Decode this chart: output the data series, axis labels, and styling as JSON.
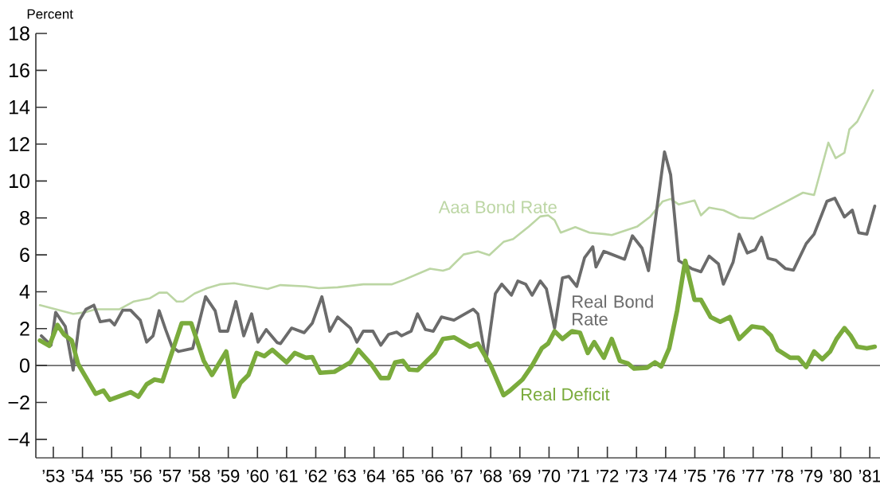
{
  "chart_data": {
    "type": "line",
    "ylabel": "Percent",
    "xlim": [
      1952.4,
      1981.35
    ],
    "ylim": [
      -5,
      18
    ],
    "xticks": [
      {
        "value": 1953,
        "label": "’53"
      },
      {
        "value": 1954,
        "label": "’54"
      },
      {
        "value": 1955,
        "label": "’55"
      },
      {
        "value": 1956,
        "label": "’56"
      },
      {
        "value": 1957,
        "label": "’57"
      },
      {
        "value": 1958,
        "label": "’58"
      },
      {
        "value": 1959,
        "label": "’59"
      },
      {
        "value": 1960,
        "label": "’60"
      },
      {
        "value": 1961,
        "label": "’61"
      },
      {
        "value": 1962,
        "label": "’62"
      },
      {
        "value": 1963,
        "label": "’63"
      },
      {
        "value": 1964,
        "label": "’64"
      },
      {
        "value": 1965,
        "label": "’65"
      },
      {
        "value": 1966,
        "label": "’66"
      },
      {
        "value": 1967,
        "label": "’67"
      },
      {
        "value": 1968,
        "label": "’68"
      },
      {
        "value": 1969,
        "label": "’69"
      },
      {
        "value": 1970,
        "label": "’70"
      },
      {
        "value": 1971,
        "label": "’71"
      },
      {
        "value": 1972,
        "label": "’72"
      },
      {
        "value": 1973,
        "label": "’73"
      },
      {
        "value": 1974,
        "label": "’74"
      },
      {
        "value": 1975,
        "label": "’75"
      },
      {
        "value": 1976,
        "label": "’76"
      },
      {
        "value": 1977,
        "label": "’77"
      },
      {
        "value": 1978,
        "label": "’78"
      },
      {
        "value": 1979,
        "label": "’79"
      },
      {
        "value": 1980,
        "label": "’80"
      },
      {
        "value": 1981,
        "label": "’81"
      }
    ],
    "yticks": [
      {
        "value": -4,
        "label": "−4"
      },
      {
        "value": -2,
        "label": "−2"
      },
      0,
      2,
      4,
      6,
      8,
      10,
      12,
      14,
      16,
      18
    ],
    "grid": false,
    "marker": "none",
    "line_style": "solid",
    "ref_lines": [
      {
        "axis": "y",
        "value": 0,
        "color": "#333333"
      }
    ],
    "series": [
      {
        "name": "Aaa Bond Rate",
        "color": "#bcd6a4",
        "x": [
          1952.54,
          1953.68,
          1954.07,
          1954.45,
          1955.27,
          1955.76,
          1956.3,
          1956.63,
          1956.9,
          1957.23,
          1957.45,
          1957.84,
          1958.27,
          1958.71,
          1959.2,
          1959.7,
          1960.35,
          1960.79,
          1961.66,
          1962.1,
          1962.75,
          1963.63,
          1964.6,
          1965.05,
          1965.92,
          1966.36,
          1966.58,
          1967.07,
          1967.56,
          1967.95,
          1968.44,
          1968.77,
          1969.31,
          1969.7,
          1969.97,
          1970.19,
          1970.4,
          1970.9,
          1971.39,
          1971.93,
          1972.15,
          1973.03,
          1973.46,
          1973.9,
          1974.17,
          1974.45,
          1974.99,
          1975.21,
          1975.49,
          1975.98,
          1976.52,
          1977.02,
          1977.84,
          1978.71,
          1979.09,
          1979.58,
          1979.83,
          1980.13,
          1980.3,
          1980.57,
          1981.11
        ],
        "values": [
          3.27,
          2.8,
          2.88,
          3.05,
          3.05,
          3.47,
          3.64,
          3.95,
          3.95,
          3.47,
          3.47,
          3.9,
          4.19,
          4.4,
          4.46,
          4.32,
          4.15,
          4.36,
          4.29,
          4.19,
          4.24,
          4.4,
          4.4,
          4.66,
          5.25,
          5.14,
          5.25,
          6.02,
          6.19,
          5.98,
          6.7,
          6.86,
          7.54,
          8.08,
          8.14,
          7.88,
          7.2,
          7.5,
          7.2,
          7.12,
          7.07,
          7.54,
          8.05,
          8.9,
          9.03,
          8.73,
          8.95,
          8.14,
          8.56,
          8.42,
          8.02,
          7.97,
          8.64,
          9.37,
          9.24,
          12.08,
          11.24,
          11.53,
          12.8,
          13.22,
          14.92
        ]
      },
      {
        "name": "Real Bond Rate",
        "color": "#6b6b6b",
        "x": [
          1952.59,
          1952.92,
          1953.08,
          1953.41,
          1953.68,
          1953.9,
          1954.12,
          1954.39,
          1954.61,
          1954.94,
          1955.1,
          1955.38,
          1955.65,
          1955.98,
          1956.2,
          1956.42,
          1956.63,
          1956.85,
          1957.07,
          1957.29,
          1957.78,
          1958.22,
          1958.55,
          1958.71,
          1958.98,
          1959.26,
          1959.53,
          1959.8,
          1960.02,
          1960.3,
          1960.68,
          1960.79,
          1961.17,
          1961.6,
          1961.88,
          1962.21,
          1962.48,
          1962.75,
          1963.19,
          1963.41,
          1963.63,
          1963.96,
          1964.23,
          1964.5,
          1964.78,
          1964.94,
          1965.27,
          1965.49,
          1965.76,
          1966.03,
          1966.31,
          1966.74,
          1967.4,
          1967.56,
          1967.84,
          1968.16,
          1968.38,
          1968.71,
          1968.93,
          1969.2,
          1969.42,
          1969.7,
          1969.91,
          1970.19,
          1970.46,
          1970.68,
          1970.95,
          1971.22,
          1971.5,
          1971.61,
          1971.88,
          1972.59,
          1972.86,
          1973.19,
          1973.41,
          1973.96,
          1974.17,
          1974.45,
          1974.89,
          1975.21,
          1975.49,
          1975.81,
          1975.98,
          1976.31,
          1976.52,
          1976.8,
          1977.07,
          1977.29,
          1977.51,
          1977.78,
          1978.11,
          1978.38,
          1978.82,
          1979.09,
          1979.53,
          1979.8,
          1980.13,
          1980.4,
          1980.62,
          1980.9,
          1981.17
        ],
        "values": [
          1.61,
          1.1,
          2.88,
          2.12,
          -0.25,
          2.46,
          3.05,
          3.27,
          2.37,
          2.46,
          2.2,
          3.0,
          3.0,
          2.46,
          1.27,
          1.61,
          2.97,
          1.95,
          1.02,
          0.76,
          0.93,
          3.73,
          2.97,
          1.86,
          1.86,
          3.47,
          1.61,
          2.8,
          1.27,
          1.95,
          1.24,
          1.19,
          2.03,
          1.78,
          2.29,
          3.73,
          1.86,
          2.63,
          2.03,
          1.27,
          1.86,
          1.86,
          1.1,
          1.69,
          1.81,
          1.61,
          1.86,
          2.8,
          1.95,
          1.86,
          2.63,
          2.46,
          3.05,
          2.8,
          0.25,
          3.9,
          4.41,
          3.81,
          4.58,
          4.41,
          3.81,
          4.58,
          4.15,
          2.03,
          4.75,
          4.83,
          4.29,
          5.85,
          6.44,
          5.34,
          6.19,
          5.76,
          7.03,
          6.36,
          5.14,
          11.58,
          10.34,
          5.68,
          5.25,
          5.08,
          5.93,
          5.51,
          4.41,
          5.59,
          7.12,
          6.1,
          6.27,
          6.95,
          5.81,
          5.71,
          5.25,
          5.17,
          6.61,
          7.12,
          8.9,
          9.07,
          8.05,
          8.42,
          7.2,
          7.12,
          8.64
        ]
      },
      {
        "name": "Real Deficit",
        "color": "#7aab3c",
        "x": [
          1952.54,
          1952.86,
          1953.14,
          1953.36,
          1953.63,
          1953.85,
          1954.45,
          1954.72,
          1954.94,
          1955.65,
          1955.92,
          1956.2,
          1956.47,
          1956.74,
          1957.4,
          1957.73,
          1958.16,
          1958.44,
          1958.93,
          1959.2,
          1959.42,
          1959.69,
          1959.97,
          1960.24,
          1960.51,
          1961.0,
          1961.28,
          1961.66,
          1961.88,
          1962.15,
          1962.64,
          1963.19,
          1963.46,
          1963.9,
          1964.23,
          1964.5,
          1964.72,
          1964.99,
          1965.21,
          1965.49,
          1965.81,
          1966.09,
          1966.36,
          1966.74,
          1967.29,
          1967.56,
          1968.0,
          1968.44,
          1968.66,
          1969.09,
          1969.42,
          1969.75,
          1969.97,
          1970.19,
          1970.46,
          1970.79,
          1971.06,
          1971.33,
          1971.55,
          1971.88,
          1972.15,
          1972.43,
          1972.7,
          1972.92,
          1973.36,
          1973.63,
          1973.85,
          1974.12,
          1974.39,
          1974.67,
          1974.99,
          1975.21,
          1975.54,
          1975.87,
          1976.2,
          1976.52,
          1976.96,
          1977.34,
          1977.62,
          1977.84,
          1978.27,
          1978.55,
          1978.82,
          1979.09,
          1979.37,
          1979.64,
          1979.86,
          1980.13,
          1980.35,
          1980.57,
          1980.9,
          1981.17
        ],
        "values": [
          1.36,
          1.07,
          2.2,
          1.69,
          1.36,
          0.08,
          -1.53,
          -1.36,
          -1.86,
          -1.44,
          -1.69,
          -1.02,
          -0.76,
          -0.85,
          2.29,
          2.29,
          0.25,
          -0.51,
          0.76,
          -1.69,
          -0.93,
          -0.51,
          0.68,
          0.51,
          0.85,
          0.17,
          0.68,
          0.42,
          0.46,
          -0.39,
          -0.34,
          0.17,
          0.85,
          0.08,
          -0.68,
          -0.68,
          0.17,
          0.25,
          -0.22,
          -0.25,
          0.25,
          0.68,
          1.44,
          1.53,
          1.02,
          1.19,
          0,
          -1.61,
          -1.36,
          -0.76,
          0,
          0.93,
          1.19,
          1.86,
          1.44,
          1.86,
          1.78,
          0.68,
          1.27,
          0.42,
          1.44,
          0.25,
          0.12,
          -0.17,
          -0.12,
          0.17,
          -0.05,
          0.93,
          2.97,
          5.68,
          3.56,
          3.56,
          2.63,
          2.37,
          2.63,
          1.44,
          2.12,
          2.03,
          1.61,
          0.85,
          0.42,
          0.42,
          -0.08,
          0.76,
          0.34,
          0.76,
          1.44,
          2.03,
          1.61,
          1.02,
          0.93,
          1.02
        ]
      }
    ]
  }
}
